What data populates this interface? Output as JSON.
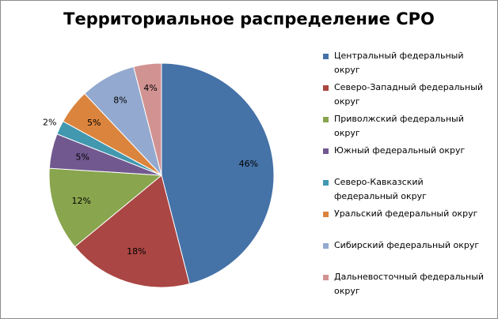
{
  "chart_data": {
    "type": "pie",
    "title": "Территориальное распределение СРО",
    "series": [
      {
        "categories": [
          "Центральный федеральный округ",
          "Северо-Западный федеральный округ",
          "Приволжский федеральный округ",
          "Южный федеральный округ",
          "Северо-Кавказский федеральный округ",
          "Уральский федеральный округ",
          "Сибирский федеральный округ",
          "Дальневосточный федеральный округ"
        ],
        "values": [
          46,
          18,
          12,
          5,
          2,
          5,
          8,
          4
        ],
        "labels": [
          "46%",
          "18%",
          "12%",
          "5%",
          "2%",
          "5%",
          "8%",
          "4%"
        ],
        "colors": [
          "#4572a7",
          "#aa4643",
          "#89a54e",
          "#71588f",
          "#4198af",
          "#db843d",
          "#93a9cf",
          "#d19392"
        ]
      }
    ],
    "legend_position": "right",
    "start_angle_deg": 0,
    "direction": "clockwise"
  }
}
